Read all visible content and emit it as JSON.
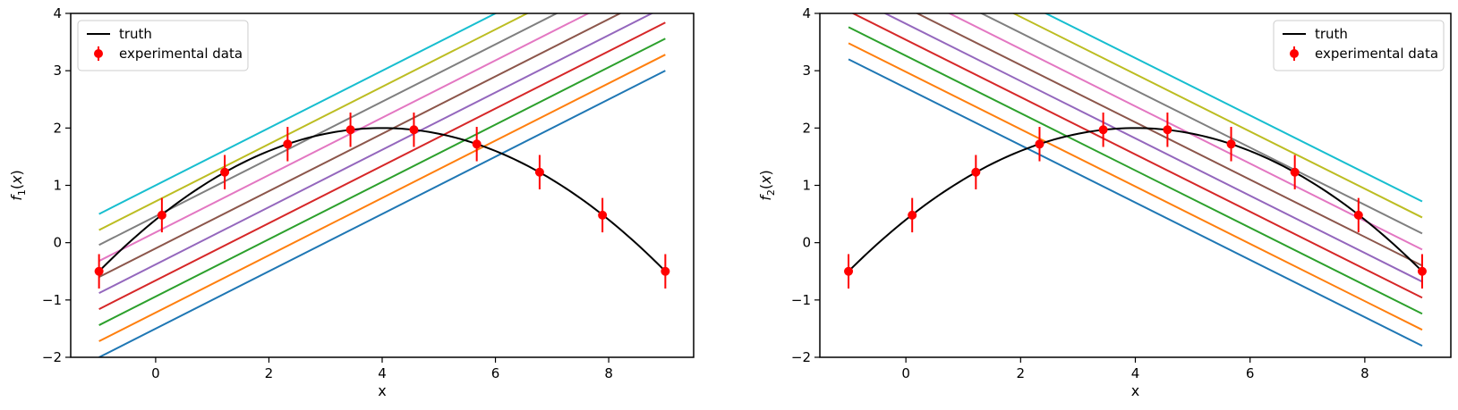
{
  "chart_data": [
    {
      "type": "line",
      "xlabel": "x",
      "ylabel": "f",
      "ylabel_sub": "1",
      "ylabel_arg": "(x)",
      "xlim": [
        -1.5,
        9.5
      ],
      "ylim": [
        -2,
        4
      ],
      "xticks": [
        0,
        2,
        4,
        6,
        8
      ],
      "yticks": [
        -2,
        -1,
        0,
        1,
        2,
        3,
        4
      ],
      "ytick_labels": [
        "−2",
        "−1",
        "0",
        "1",
        "2",
        "3",
        "4"
      ],
      "legend_position": "upper-left",
      "legend": [
        {
          "label": "truth",
          "kind": "line",
          "color": "#000000"
        },
        {
          "label": "experimental data",
          "kind": "errorbar",
          "color": "#ff0000"
        }
      ],
      "truth": {
        "label": "truth",
        "color": "#000000",
        "formula": "2 - 0.1*(x-4)^2",
        "x_range": [
          -1,
          9
        ]
      },
      "experimental_data": {
        "label": "experimental data",
        "color": "#ff0000",
        "x": [
          -1.0,
          0.11,
          1.22,
          2.33,
          3.44,
          4.56,
          5.67,
          6.78,
          7.89,
          9.0
        ],
        "y": [
          -0.5,
          0.48,
          1.23,
          1.72,
          1.97,
          1.97,
          1.72,
          1.23,
          0.48,
          -0.5
        ],
        "yerr": 0.3
      },
      "fit_lines": [
        {
          "color": "#1f77b4",
          "x": [
            -1,
            9
          ],
          "y": [
            -2.0,
            3.0
          ]
        },
        {
          "color": "#ff7f0e",
          "x": [
            -1,
            9
          ],
          "y": [
            -1.72,
            3.28
          ]
        },
        {
          "color": "#2ca02c",
          "x": [
            -1,
            9
          ],
          "y": [
            -1.44,
            3.56
          ]
        },
        {
          "color": "#d62728",
          "x": [
            -1,
            9
          ],
          "y": [
            -1.16,
            3.84
          ]
        },
        {
          "color": "#9467bd",
          "x": [
            -1,
            9
          ],
          "y": [
            -0.88,
            4.12
          ]
        },
        {
          "color": "#8c564b",
          "x": [
            -1,
            9
          ],
          "y": [
            -0.6,
            4.4
          ]
        },
        {
          "color": "#e377c2",
          "x": [
            -1,
            9
          ],
          "y": [
            -0.32,
            4.68
          ]
        },
        {
          "color": "#7f7f7f",
          "x": [
            -1,
            9
          ],
          "y": [
            -0.04,
            4.96
          ]
        },
        {
          "color": "#bcbd22",
          "x": [
            -1,
            9
          ],
          "y": [
            0.22,
            5.22
          ]
        },
        {
          "color": "#17becf",
          "x": [
            -1,
            9
          ],
          "y": [
            0.5,
            5.5
          ]
        }
      ]
    },
    {
      "type": "line",
      "xlabel": "x",
      "ylabel": "f",
      "ylabel_sub": "2",
      "ylabel_arg": "(x)",
      "xlim": [
        -1.5,
        9.5
      ],
      "ylim": [
        -2,
        4
      ],
      "xticks": [
        0,
        2,
        4,
        6,
        8
      ],
      "yticks": [
        -2,
        -1,
        0,
        1,
        2,
        3,
        4
      ],
      "ytick_labels": [
        "−2",
        "−1",
        "0",
        "1",
        "2",
        "3",
        "4"
      ],
      "legend_position": "upper-right",
      "legend": [
        {
          "label": "truth",
          "kind": "line",
          "color": "#000000"
        },
        {
          "label": "experimental data",
          "kind": "errorbar",
          "color": "#ff0000"
        }
      ],
      "truth": {
        "label": "truth",
        "color": "#000000",
        "formula": "2 - 0.1*(x-4)^2",
        "x_range": [
          -1,
          9
        ]
      },
      "experimental_data": {
        "label": "experimental data",
        "color": "#ff0000",
        "x": [
          -1.0,
          0.11,
          1.22,
          2.33,
          3.44,
          4.56,
          5.67,
          6.78,
          7.89,
          9.0
        ],
        "y": [
          -0.5,
          0.48,
          1.23,
          1.72,
          1.97,
          1.97,
          1.72,
          1.23,
          0.48,
          -0.5
        ],
        "yerr": 0.3
      },
      "fit_lines": [
        {
          "color": "#1f77b4",
          "x": [
            -1,
            9
          ],
          "y": [
            3.2,
            -1.8
          ]
        },
        {
          "color": "#ff7f0e",
          "x": [
            -1,
            9
          ],
          "y": [
            3.48,
            -1.52
          ]
        },
        {
          "color": "#2ca02c",
          "x": [
            -1,
            9
          ],
          "y": [
            3.76,
            -1.24
          ]
        },
        {
          "color": "#d62728",
          "x": [
            -1,
            9
          ],
          "y": [
            4.04,
            -0.96
          ]
        },
        {
          "color": "#9467bd",
          "x": [
            -1,
            9
          ],
          "y": [
            4.32,
            -0.68
          ]
        },
        {
          "color": "#8c564b",
          "x": [
            -1,
            9
          ],
          "y": [
            4.6,
            -0.4
          ]
        },
        {
          "color": "#e377c2",
          "x": [
            -1,
            9
          ],
          "y": [
            4.88,
            -0.12
          ]
        },
        {
          "color": "#7f7f7f",
          "x": [
            -1,
            9
          ],
          "y": [
            5.16,
            0.16
          ]
        },
        {
          "color": "#bcbd22",
          "x": [
            -1,
            9
          ],
          "y": [
            5.44,
            0.44
          ]
        },
        {
          "color": "#17becf",
          "x": [
            -1,
            9
          ],
          "y": [
            5.72,
            0.72
          ]
        }
      ]
    }
  ]
}
